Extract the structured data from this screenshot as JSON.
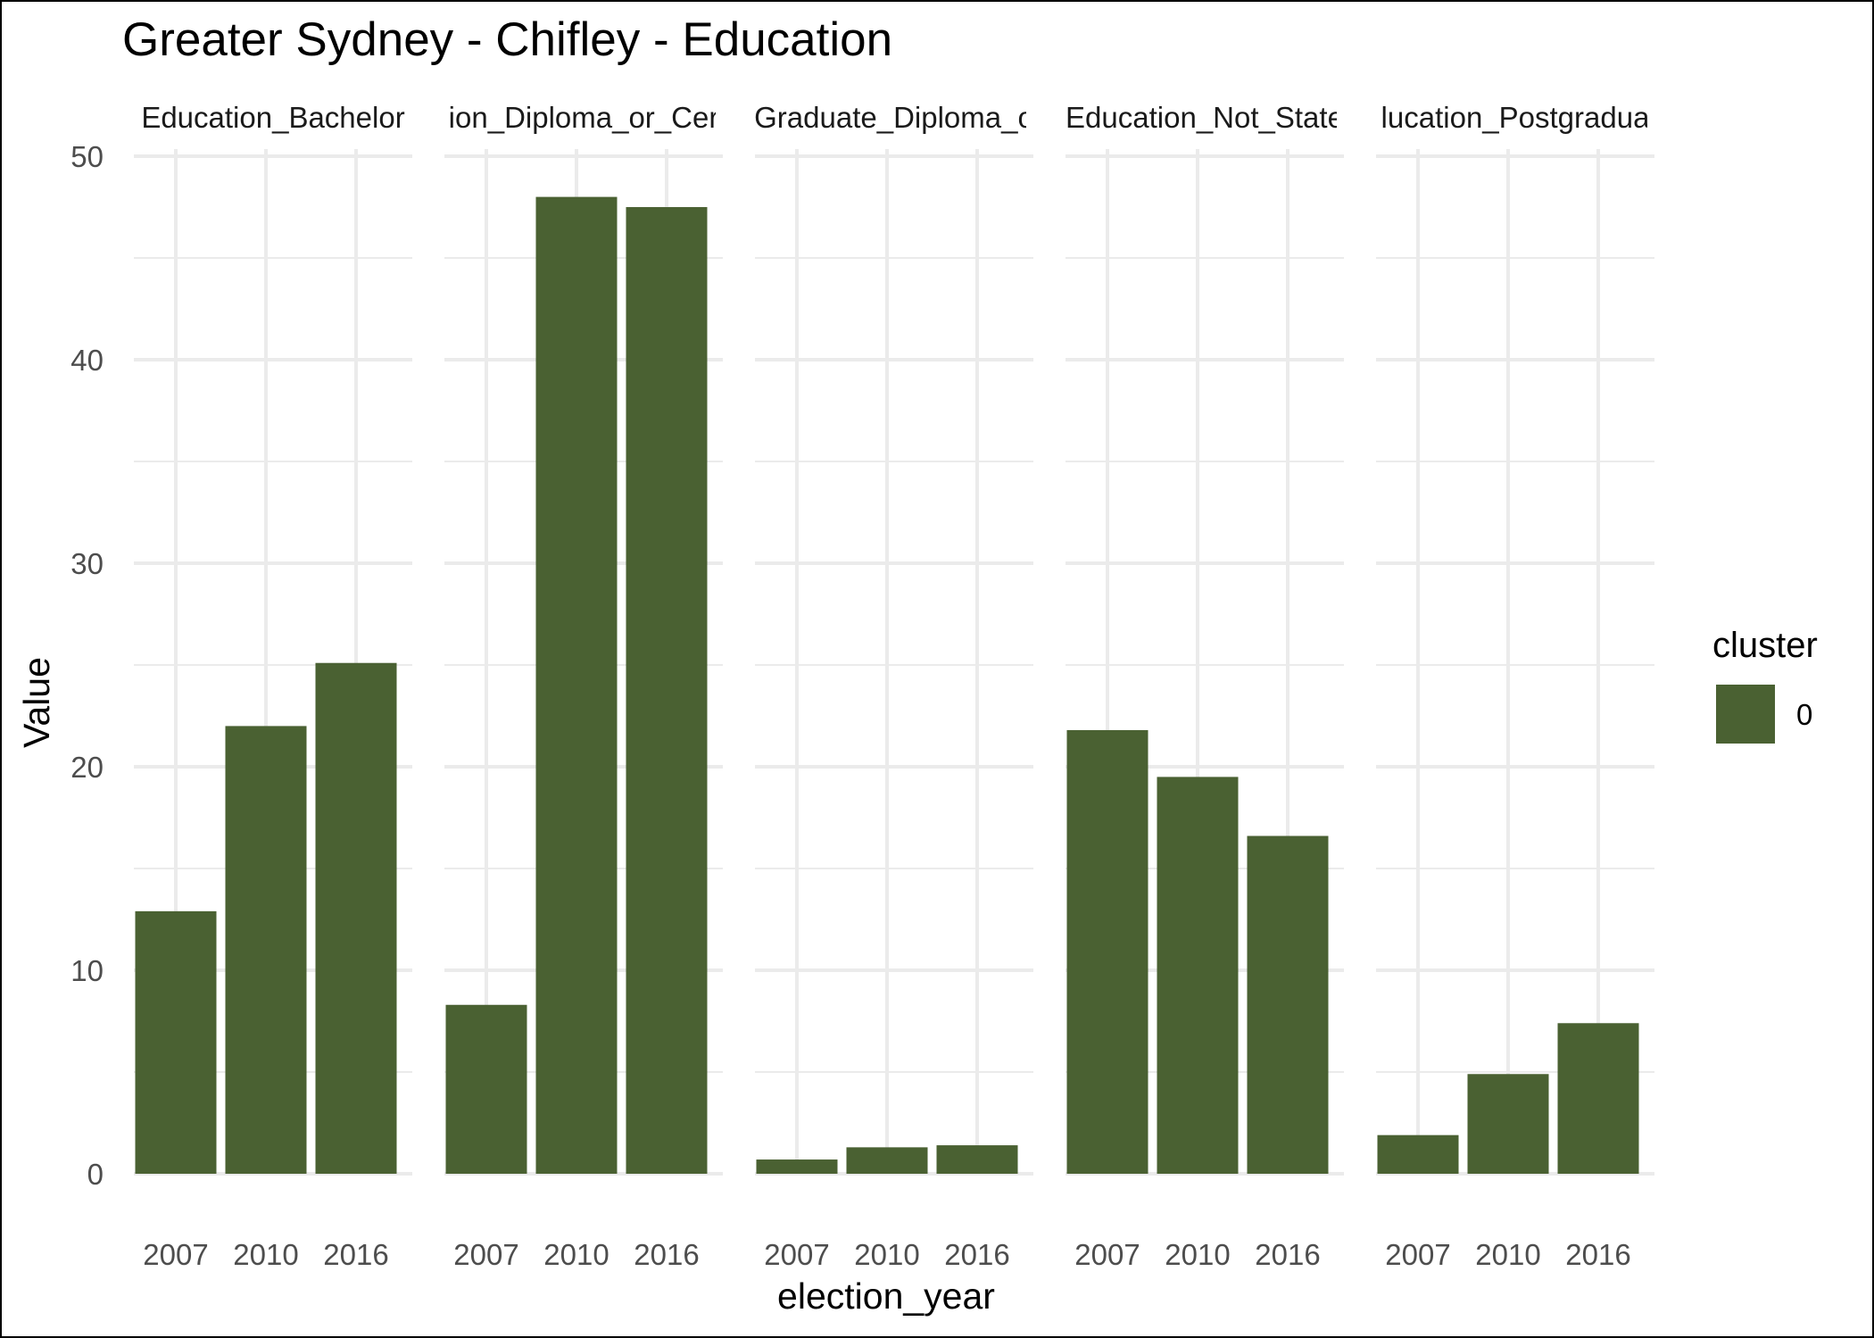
{
  "chart_data": {
    "type": "bar",
    "title": "Greater Sydney - Chifley - Education",
    "xlabel": "election_year",
    "ylabel": "Value",
    "ylim": [
      0,
      50
    ],
    "yticks": [
      "0",
      "10",
      "20",
      "30",
      "40",
      "50"
    ],
    "grid": true,
    "legend_position": "right",
    "bar_color": "#4a6132",
    "categories": [
      "2007",
      "2010",
      "2016"
    ],
    "legend": {
      "title": "cluster",
      "items": [
        {
          "label": "0",
          "color": "#4a6132"
        }
      ]
    },
    "facets": [
      {
        "label": "Education_Bachelor",
        "values": [
          12.9,
          22.0,
          25.1
        ]
      },
      {
        "label": "ion_Diploma_or_Cer",
        "values": [
          8.3,
          48.0,
          47.5
        ]
      },
      {
        "label": "Graduate_Diploma_o",
        "values": [
          0.7,
          1.3,
          1.4
        ]
      },
      {
        "label": "Education_Not_State",
        "values": [
          21.8,
          19.5,
          16.6
        ]
      },
      {
        "label": "lucation_Postgradua",
        "values": [
          1.9,
          4.9,
          7.4
        ]
      }
    ]
  }
}
